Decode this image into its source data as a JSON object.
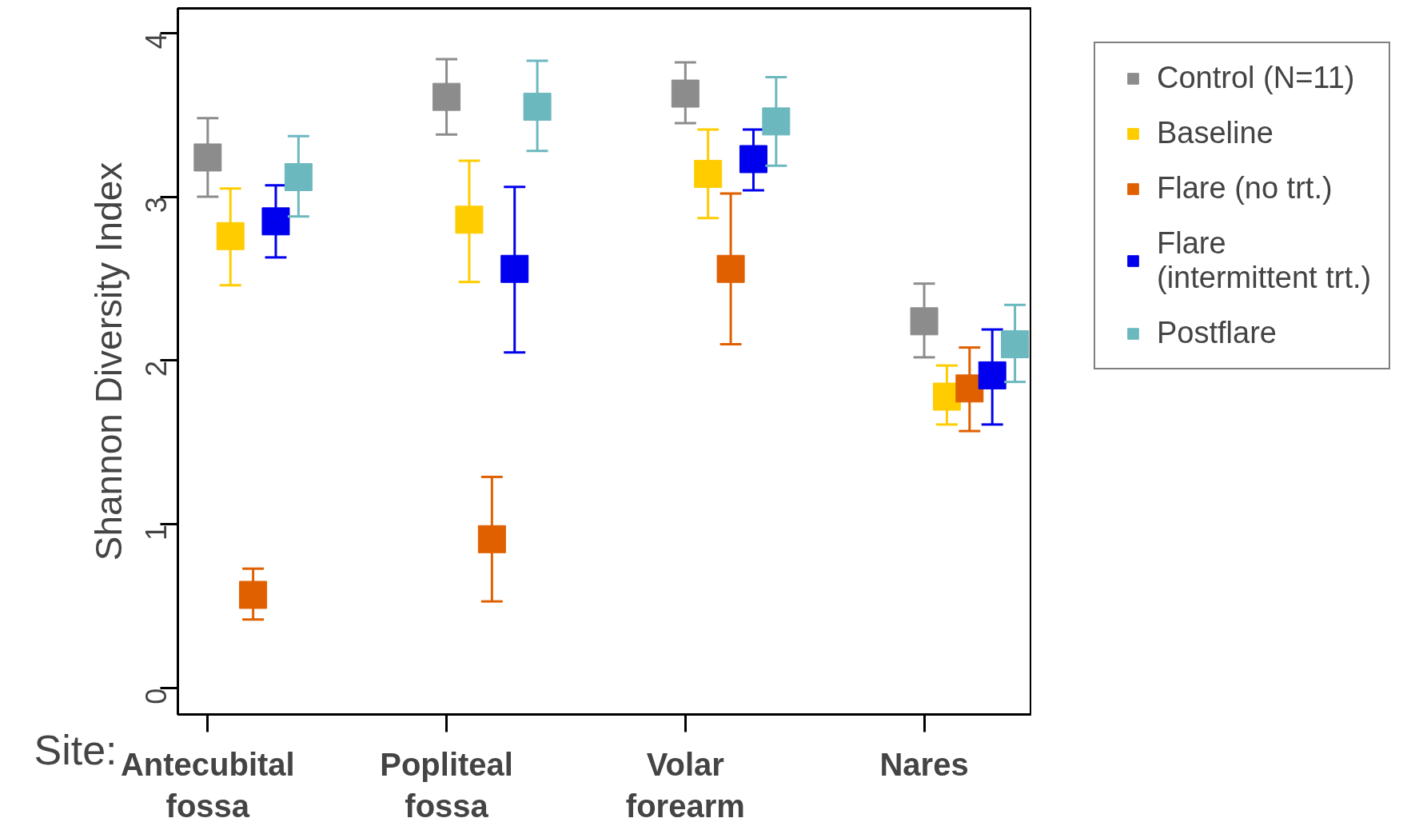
{
  "chart_data": {
    "type": "scatter",
    "ylabel": "Shannon Diversity Index",
    "xlabel": "Site:",
    "categories": [
      "Antecubital\nfossa",
      "Popliteal\nfossa",
      "Volar\nforearm",
      "Nares"
    ],
    "series": [
      {
        "name": "Control (N=11)",
        "color": "#8c8c8c",
        "values": [
          3.24,
          3.61,
          3.63,
          2.24
        ],
        "errors": [
          [
            3.0,
            3.48
          ],
          [
            3.38,
            3.84
          ],
          [
            3.45,
            3.82
          ],
          [
            2.02,
            2.47
          ]
        ]
      },
      {
        "name": "Baseline",
        "color": "#ffcc00",
        "values": [
          2.76,
          2.86,
          3.14,
          1.78
        ],
        "errors": [
          [
            2.46,
            3.05
          ],
          [
            2.48,
            3.22
          ],
          [
            2.87,
            3.41
          ],
          [
            1.61,
            1.97
          ]
        ]
      },
      {
        "name": "Flare (no trt.)",
        "color": "#e06000",
        "values": [
          0.57,
          0.91,
          2.56,
          1.83
        ],
        "errors": [
          [
            0.42,
            0.73
          ],
          [
            0.53,
            1.29
          ],
          [
            2.1,
            3.02
          ],
          [
            1.57,
            2.08
          ]
        ]
      },
      {
        "name": "Flare\n(intermittent trt.)",
        "color": "#0000ee",
        "values": [
          2.85,
          2.56,
          3.23,
          1.91
        ],
        "errors": [
          [
            2.63,
            3.07
          ],
          [
            2.05,
            3.06
          ],
          [
            3.04,
            3.41
          ],
          [
            1.61,
            2.19
          ]
        ]
      },
      {
        "name": "Postflare",
        "color": "#6cb8bf",
        "values": [
          3.12,
          3.55,
          3.46,
          2.1
        ],
        "errors": [
          [
            2.88,
            3.37
          ],
          [
            3.28,
            3.83
          ],
          [
            3.19,
            3.73
          ],
          [
            1.87,
            2.34
          ]
        ]
      }
    ],
    "ylim": [
      -0.16,
      4.15
    ],
    "yticks": [
      0,
      1,
      2,
      3,
      4
    ],
    "grid": false,
    "legend": "right",
    "marker": "square"
  }
}
